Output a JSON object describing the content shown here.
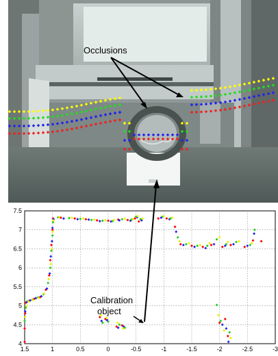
{
  "photo": {
    "annotation_label": "Occlusions",
    "colors": {
      "yellow": "#ffff00",
      "green": "#22dd22",
      "blue": "#2222ee",
      "red": "#ee2222"
    }
  },
  "plot": {
    "annotation_line1": "Calibration",
    "annotation_line2": "object"
  },
  "chart_data": {
    "type": "scatter",
    "title": "",
    "xlabel": "",
    "ylabel": "",
    "xlim": [
      1.5,
      -3
    ],
    "ylim": [
      4,
      7.5
    ],
    "x_reversed": true,
    "grid": true,
    "x_ticks": [
      1.5,
      1,
      0.5,
      0,
      -0.5,
      -1,
      -1.5,
      -2,
      -2.5,
      -3
    ],
    "x_tick_labels": [
      "1.5",
      "1",
      "0.5",
      "0",
      "-0.5",
      "-1",
      "-1.5",
      "-2",
      "-2.5",
      "-3"
    ],
    "y_ticks": [
      4,
      4.5,
      5,
      5.5,
      6,
      6.5,
      7,
      7.5
    ],
    "y_tick_labels": [
      "4",
      "4.5",
      "5",
      "5.5",
      "6",
      "6.5",
      "7",
      "7.5"
    ],
    "series": [
      {
        "color": "#ff0000",
        "points": [
          [
            1.5,
            4.05
          ],
          [
            1.5,
            4.4
          ],
          [
            1.49,
            4.8
          ],
          [
            1.48,
            5.08
          ],
          [
            1.42,
            5.13
          ],
          [
            1.33,
            5.18
          ],
          [
            1.22,
            5.23
          ],
          [
            1.12,
            5.42
          ],
          [
            1.06,
            5.8
          ],
          [
            1.04,
            6.2
          ],
          [
            1.02,
            6.6
          ],
          [
            1.0,
            7.0
          ],
          [
            0.99,
            7.3
          ],
          [
            0.85,
            7.32
          ],
          [
            0.6,
            7.3
          ],
          [
            0.4,
            7.28
          ],
          [
            0.2,
            7.25
          ],
          [
            0.0,
            7.24
          ],
          [
            -0.18,
            7.27
          ],
          [
            -0.35,
            7.26
          ],
          [
            -0.48,
            7.3
          ],
          [
            -0.55,
            7.22
          ],
          [
            -0.9,
            7.3
          ],
          [
            -1.05,
            7.3
          ],
          [
            -1.2,
            7.08
          ],
          [
            -1.3,
            6.62
          ],
          [
            -1.5,
            6.58
          ],
          [
            -1.7,
            6.55
          ],
          [
            -1.85,
            6.6
          ],
          [
            -2.05,
            6.55
          ],
          [
            -2.2,
            6.6
          ],
          [
            -2.45,
            6.55
          ],
          [
            -2.6,
            6.72
          ],
          [
            -2.75,
            6.7
          ],
          [
            -2.0,
            4.55
          ],
          [
            -2.1,
            4.65
          ],
          [
            -2.15,
            4.2
          ],
          [
            0.15,
            4.7
          ],
          [
            0.05,
            4.65
          ],
          [
            -0.15,
            4.45
          ],
          [
            -0.25,
            4.48
          ]
        ]
      },
      {
        "color": "#2222ee",
        "points": [
          [
            1.52,
            4.1
          ],
          [
            1.51,
            4.45
          ],
          [
            1.49,
            4.85
          ],
          [
            1.46,
            5.1
          ],
          [
            1.4,
            5.14
          ],
          [
            1.3,
            5.2
          ],
          [
            1.2,
            5.25
          ],
          [
            1.1,
            5.45
          ],
          [
            1.05,
            5.85
          ],
          [
            1.03,
            6.3
          ],
          [
            1.01,
            6.7
          ],
          [
            1.0,
            7.05
          ],
          [
            0.98,
            7.28
          ],
          [
            0.8,
            7.3
          ],
          [
            0.55,
            7.28
          ],
          [
            0.35,
            7.27
          ],
          [
            0.15,
            7.23
          ],
          [
            -0.05,
            7.22
          ],
          [
            -0.2,
            7.25
          ],
          [
            -0.4,
            7.24
          ],
          [
            -0.52,
            7.33
          ],
          [
            -0.6,
            7.25
          ],
          [
            -0.95,
            7.32
          ],
          [
            -1.1,
            7.28
          ],
          [
            -1.22,
            6.95
          ],
          [
            -1.35,
            6.6
          ],
          [
            -1.55,
            6.55
          ],
          [
            -1.75,
            6.52
          ],
          [
            -1.9,
            6.62
          ],
          [
            -2.1,
            6.58
          ],
          [
            -2.25,
            6.62
          ],
          [
            -2.5,
            6.58
          ],
          [
            -2.62,
            6.9
          ],
          [
            -2.05,
            4.5
          ],
          [
            -2.12,
            4.4
          ],
          [
            -2.16,
            4.05
          ],
          [
            0.12,
            4.6
          ],
          [
            0.02,
            4.62
          ],
          [
            -0.18,
            4.42
          ],
          [
            -0.28,
            4.45
          ]
        ]
      },
      {
        "color": "#22cc22",
        "points": [
          [
            1.53,
            4.2
          ],
          [
            1.5,
            4.6
          ],
          [
            1.48,
            4.95
          ],
          [
            1.44,
            5.12
          ],
          [
            1.36,
            5.16
          ],
          [
            1.26,
            5.22
          ],
          [
            1.16,
            5.3
          ],
          [
            1.08,
            5.6
          ],
          [
            1.04,
            6.0
          ],
          [
            1.02,
            6.45
          ],
          [
            1.0,
            6.85
          ],
          [
            0.99,
            7.2
          ],
          [
            0.9,
            7.33
          ],
          [
            0.7,
            7.31
          ],
          [
            0.5,
            7.29
          ],
          [
            0.3,
            7.26
          ],
          [
            0.1,
            7.24
          ],
          [
            -0.08,
            7.23
          ],
          [
            -0.25,
            7.28
          ],
          [
            -0.42,
            7.27
          ],
          [
            -0.5,
            7.35
          ],
          [
            -0.58,
            7.28
          ],
          [
            -0.98,
            7.35
          ],
          [
            -1.12,
            7.3
          ],
          [
            -1.25,
            6.8
          ],
          [
            -1.4,
            6.62
          ],
          [
            -1.6,
            6.58
          ],
          [
            -1.78,
            6.58
          ],
          [
            -1.95,
            6.75
          ],
          [
            -2.12,
            6.62
          ],
          [
            -2.3,
            6.68
          ],
          [
            -2.55,
            6.6
          ],
          [
            -2.63,
            7.0
          ],
          [
            -1.95,
            5.02
          ],
          [
            -2.02,
            4.6
          ],
          [
            -2.18,
            4.3
          ],
          [
            0.1,
            4.55
          ],
          [
            0.0,
            4.58
          ],
          [
            -0.2,
            4.5
          ],
          [
            -0.3,
            4.42
          ]
        ]
      },
      {
        "color": "#eeee00",
        "points": [
          [
            1.52,
            4.3
          ],
          [
            1.49,
            4.7
          ],
          [
            1.47,
            5.0
          ],
          [
            1.43,
            5.11
          ],
          [
            1.35,
            5.15
          ],
          [
            1.25,
            5.2
          ],
          [
            1.15,
            5.32
          ],
          [
            1.07,
            5.7
          ],
          [
            1.03,
            6.1
          ],
          [
            1.01,
            6.5
          ],
          [
            1.0,
            6.95
          ],
          [
            0.98,
            7.25
          ],
          [
            0.88,
            7.34
          ],
          [
            0.65,
            7.32
          ],
          [
            0.45,
            7.3
          ],
          [
            0.25,
            7.27
          ],
          [
            0.05,
            7.25
          ],
          [
            -0.1,
            7.26
          ],
          [
            -0.3,
            7.29
          ],
          [
            -0.45,
            7.28
          ],
          [
            -0.53,
            7.36
          ],
          [
            -0.62,
            7.3
          ],
          [
            -1.0,
            7.36
          ],
          [
            -1.15,
            7.32
          ],
          [
            -1.28,
            6.7
          ],
          [
            -1.45,
            6.65
          ],
          [
            -1.65,
            6.6
          ],
          [
            -1.82,
            6.65
          ],
          [
            -2.0,
            6.8
          ],
          [
            -2.15,
            6.68
          ],
          [
            -2.35,
            6.7
          ],
          [
            -2.58,
            6.65
          ],
          [
            -1.98,
            4.75
          ],
          [
            -2.08,
            4.35
          ],
          [
            -2.2,
            4.15
          ],
          [
            0.13,
            4.75
          ],
          [
            0.03,
            4.68
          ],
          [
            -0.17,
            4.55
          ],
          [
            -0.27,
            4.4
          ]
        ]
      }
    ]
  }
}
